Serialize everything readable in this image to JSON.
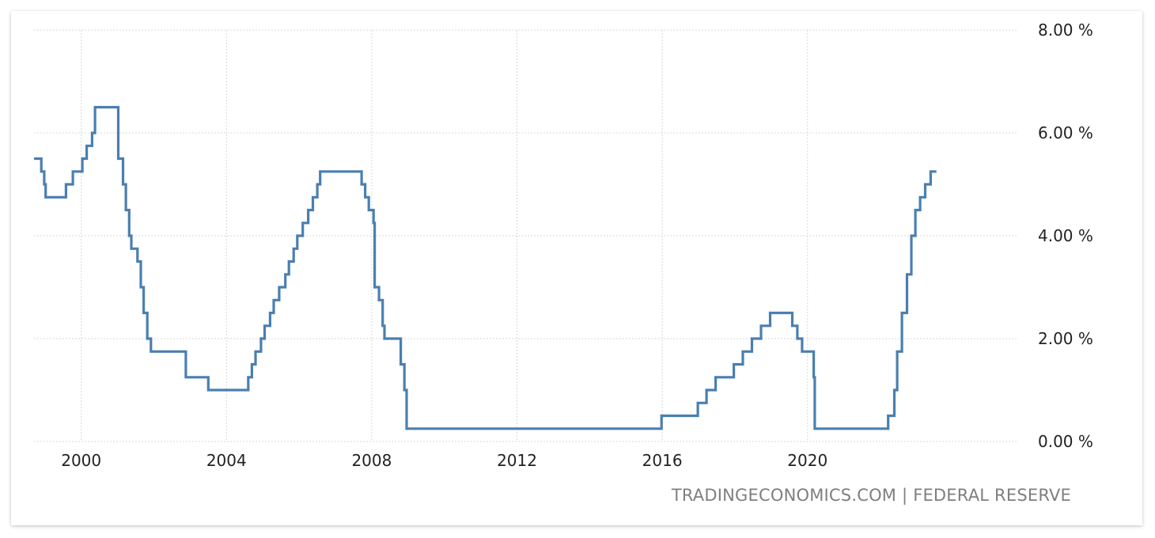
{
  "attribution": {
    "source_site": "TRADINGECONOMICS.COM",
    "separator": "|",
    "source_org": "FEDERAL RESERVE"
  },
  "colors": {
    "line": "#4a7fb0",
    "grid": "#d8d8d8",
    "text": "#222222",
    "attribution": "#7f7f7f"
  },
  "chart_data": {
    "type": "line",
    "title": "",
    "xlabel": "",
    "ylabel": "",
    "x_ticks": [
      2000,
      2004,
      2008,
      2012,
      2016,
      2020
    ],
    "x_tick_labels": [
      "2000",
      "2004",
      "2008",
      "2012",
      "2016",
      "2020"
    ],
    "y_ticks": [
      0,
      2,
      4,
      6,
      8
    ],
    "y_tick_labels": [
      "0.00 %",
      "2.00 %",
      "4.00 %",
      "6.00 %",
      "8.00 %"
    ],
    "xlim": [
      1998.7,
      2025.8
    ],
    "ylim": [
      0,
      8
    ],
    "grid": true,
    "step": true,
    "series": [
      {
        "values": [
          [
            1998.7,
            5.5
          ],
          [
            1998.85,
            5.5
          ],
          [
            1998.9,
            5.25
          ],
          [
            1998.98,
            5.0
          ],
          [
            1999.02,
            4.75
          ],
          [
            1999.5,
            4.75
          ],
          [
            1999.58,
            5.0
          ],
          [
            1999.77,
            5.25
          ],
          [
            1999.9,
            5.25
          ],
          [
            2000.03,
            5.5
          ],
          [
            2000.15,
            5.75
          ],
          [
            2000.3,
            6.0
          ],
          [
            2000.38,
            6.5
          ],
          [
            2000.92,
            6.5
          ],
          [
            2001.02,
            6.0
          ],
          [
            2001.02,
            5.5
          ],
          [
            2001.15,
            5.0
          ],
          [
            2001.23,
            4.5
          ],
          [
            2001.32,
            4.0
          ],
          [
            2001.38,
            3.75
          ],
          [
            2001.48,
            3.75
          ],
          [
            2001.55,
            3.5
          ],
          [
            2001.64,
            3.0
          ],
          [
            2001.72,
            2.5
          ],
          [
            2001.75,
            2.5
          ],
          [
            2001.82,
            2.0
          ],
          [
            2001.92,
            1.75
          ],
          [
            2002.85,
            1.75
          ],
          [
            2002.88,
            1.25
          ],
          [
            2003.48,
            1.25
          ],
          [
            2003.5,
            1.0
          ],
          [
            2004.5,
            1.0
          ],
          [
            2004.6,
            1.25
          ],
          [
            2004.7,
            1.5
          ],
          [
            2004.8,
            1.75
          ],
          [
            2004.95,
            2.0
          ],
          [
            2005.05,
            2.25
          ],
          [
            2005.2,
            2.5
          ],
          [
            2005.3,
            2.75
          ],
          [
            2005.45,
            3.0
          ],
          [
            2005.62,
            3.25
          ],
          [
            2005.72,
            3.5
          ],
          [
            2005.85,
            3.75
          ],
          [
            2005.95,
            4.0
          ],
          [
            2006.1,
            4.25
          ],
          [
            2006.25,
            4.5
          ],
          [
            2006.38,
            4.75
          ],
          [
            2006.5,
            5.0
          ],
          [
            2006.58,
            5.25
          ],
          [
            2007.7,
            5.25
          ],
          [
            2007.72,
            5.0
          ],
          [
            2007.82,
            4.75
          ],
          [
            2007.92,
            4.5
          ],
          [
            2008.05,
            4.25
          ],
          [
            2008.08,
            3.0
          ],
          [
            2008.2,
            2.75
          ],
          [
            2008.3,
            2.25
          ],
          [
            2008.35,
            2.0
          ],
          [
            2008.78,
            2.0
          ],
          [
            2008.8,
            1.5
          ],
          [
            2008.9,
            1.0
          ],
          [
            2008.96,
            0.25
          ],
          [
            2015.95,
            0.25
          ],
          [
            2015.98,
            0.5
          ],
          [
            2016.95,
            0.5
          ],
          [
            2016.98,
            0.75
          ],
          [
            2017.2,
            0.75
          ],
          [
            2017.22,
            1.0
          ],
          [
            2017.45,
            1.0
          ],
          [
            2017.47,
            1.25
          ],
          [
            2017.95,
            1.25
          ],
          [
            2017.97,
            1.5
          ],
          [
            2018.2,
            1.5
          ],
          [
            2018.22,
            1.75
          ],
          [
            2018.45,
            1.75
          ],
          [
            2018.47,
            2.0
          ],
          [
            2018.7,
            2.0
          ],
          [
            2018.72,
            2.25
          ],
          [
            2018.95,
            2.25
          ],
          [
            2018.97,
            2.5
          ],
          [
            2019.55,
            2.5
          ],
          [
            2019.58,
            2.25
          ],
          [
            2019.7,
            2.25
          ],
          [
            2019.72,
            2.0
          ],
          [
            2019.82,
            2.0
          ],
          [
            2019.85,
            1.75
          ],
          [
            2020.15,
            1.75
          ],
          [
            2020.17,
            1.25
          ],
          [
            2020.2,
            0.25
          ],
          [
            2022.2,
            0.25
          ],
          [
            2022.22,
            0.5
          ],
          [
            2022.37,
            0.5
          ],
          [
            2022.39,
            1.0
          ],
          [
            2022.45,
            1.0
          ],
          [
            2022.47,
            1.75
          ],
          [
            2022.57,
            1.75
          ],
          [
            2022.6,
            2.5
          ],
          [
            2022.72,
            2.5
          ],
          [
            2022.74,
            3.25
          ],
          [
            2022.84,
            3.25
          ],
          [
            2022.86,
            4.0
          ],
          [
            2022.95,
            4.0
          ],
          [
            2022.97,
            4.5
          ],
          [
            2023.08,
            4.5
          ],
          [
            2023.1,
            4.75
          ],
          [
            2023.22,
            4.75
          ],
          [
            2023.24,
            5.0
          ],
          [
            2023.37,
            5.0
          ],
          [
            2023.39,
            5.25
          ],
          [
            2023.55,
            5.25
          ]
        ]
      }
    ]
  }
}
